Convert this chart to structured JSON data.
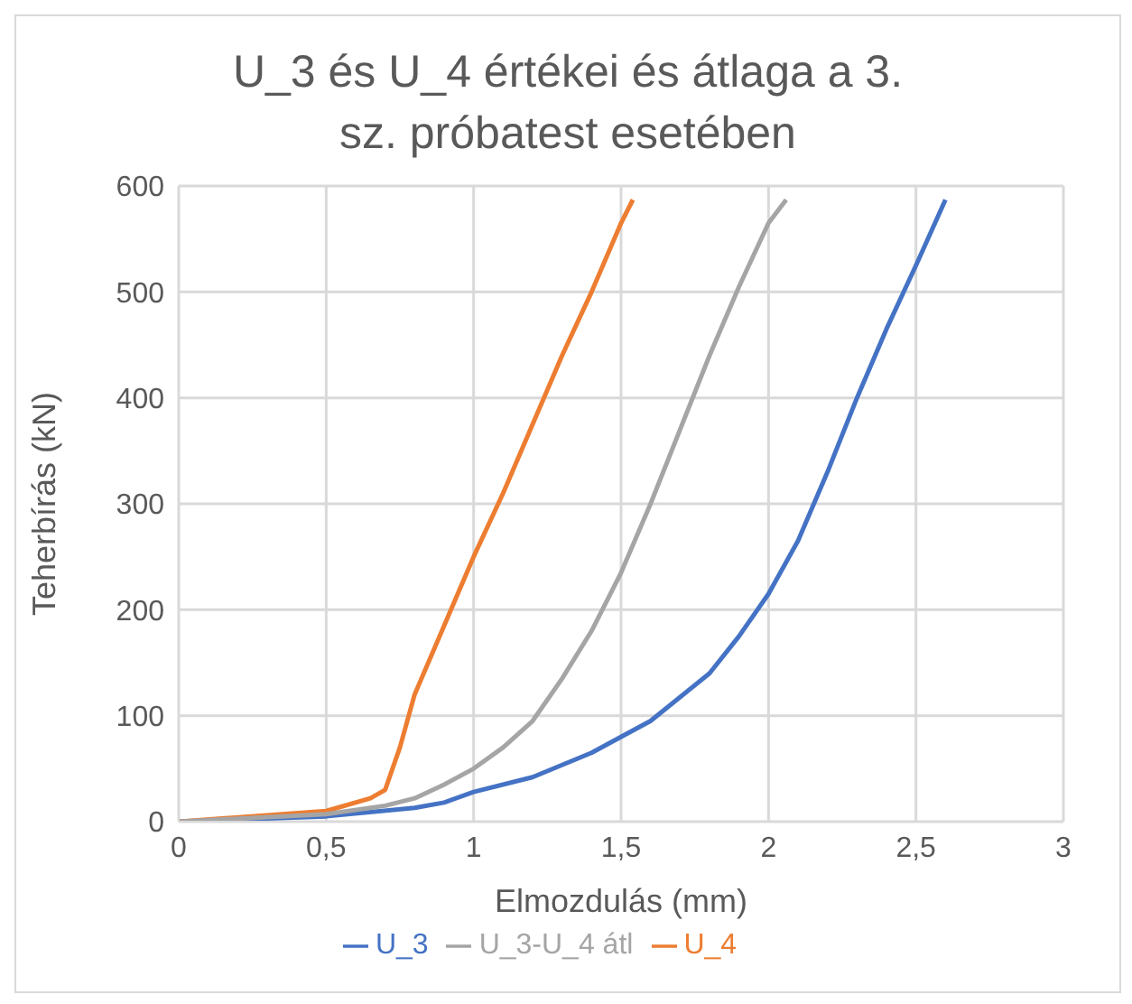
{
  "chart_data": {
    "type": "line",
    "title": "U_3 és U_4 értékei és átlaga a 3. sz. próbatest esetében",
    "xlabel": "Elmozdulás (mm)",
    "ylabel": "Teherbírás (kN)",
    "xlim": [
      0,
      3
    ],
    "xticks": [
      0,
      {
        "value": 0.5,
        "label": "0,5"
      },
      1,
      {
        "value": 1.5,
        "label": "1,5"
      },
      2,
      {
        "value": 2.5,
        "label": "2,5"
      },
      3
    ],
    "ylim": [
      0,
      600
    ],
    "yticks": [
      0,
      100,
      200,
      300,
      400,
      500,
      600
    ],
    "grid": true,
    "legend": "bottom",
    "marker": "none",
    "line_style": "solid",
    "series": [
      {
        "name": "U_3",
        "color": "#4472c4",
        "x": [
          0,
          0.5,
          0.8,
          0.9,
          1.0,
          1.2,
          1.4,
          1.6,
          1.8,
          1.9,
          2.0,
          2.1,
          2.2,
          2.3,
          2.4,
          2.5,
          2.6
        ],
        "values": [
          0,
          5,
          13,
          18,
          28,
          42,
          65,
          95,
          140,
          175,
          215,
          265,
          330,
          400,
          465,
          525,
          587
        ]
      },
      {
        "name": "U_4",
        "color": "#ed7d31",
        "x": [
          0,
          0.5,
          0.65,
          0.7,
          0.75,
          0.8,
          0.9,
          1.0,
          1.1,
          1.2,
          1.3,
          1.4,
          1.5,
          1.54
        ],
        "values": [
          0,
          10,
          22,
          30,
          70,
          120,
          185,
          250,
          310,
          375,
          440,
          500,
          565,
          587
        ]
      },
      {
        "name": "U_3-U_4 átl",
        "color": "#a5a5a5",
        "x": [
          0,
          0.5,
          0.7,
          0.8,
          0.9,
          1.0,
          1.1,
          1.2,
          1.3,
          1.4,
          1.5,
          1.6,
          1.7,
          1.8,
          1.9,
          2.0,
          2.06
        ],
        "values": [
          0,
          7,
          15,
          22,
          35,
          50,
          70,
          95,
          135,
          180,
          235,
          300,
          370,
          440,
          505,
          565,
          587
        ]
      }
    ]
  }
}
